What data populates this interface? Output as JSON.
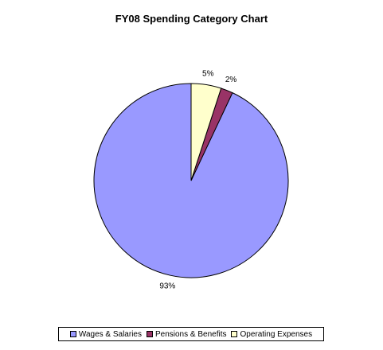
{
  "chart_data": {
    "type": "pie",
    "title": "FY08 Spending Category Chart",
    "slices": [
      {
        "name": "Wages & Salaries",
        "value": 93,
        "label": "93%",
        "color": "#9999FF"
      },
      {
        "name": "Pensions & Benefits",
        "value": 2,
        "label": "2%",
        "color": "#993366"
      },
      {
        "name": "Operating Expenses",
        "value": 5,
        "label": "5%",
        "color": "#FFFFCC"
      }
    ],
    "start": "12 o'clock",
    "direction": "counter-clockwise",
    "legend_position": "bottom"
  }
}
